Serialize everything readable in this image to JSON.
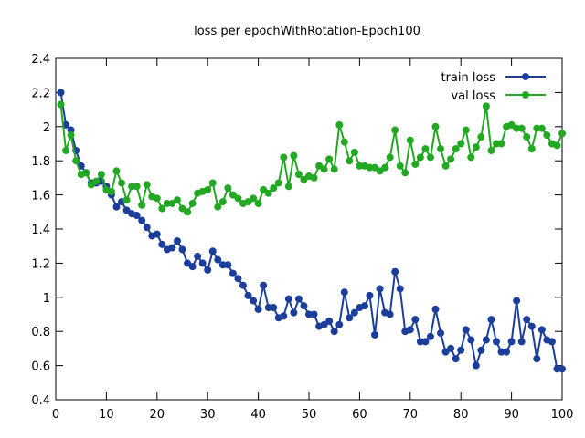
{
  "chart_data": {
    "type": "line",
    "title": "loss per epochWithRotation-Epoch100",
    "xlabel": "",
    "ylabel": "",
    "xlim": [
      0,
      100
    ],
    "ylim": [
      0.4,
      2.4
    ],
    "xticks": [
      0,
      10,
      20,
      30,
      40,
      50,
      60,
      70,
      80,
      90,
      100
    ],
    "yticks": [
      0.4,
      0.6,
      0.8,
      1,
      1.2,
      1.4,
      1.6,
      1.8,
      2,
      2.2,
      2.4
    ],
    "ytick_labels": [
      "0.4",
      "0.6",
      "0.8",
      "1",
      "1.2",
      "1.4",
      "1.6",
      "1.8",
      "2",
      "2.2",
      "2.4"
    ],
    "grid": false,
    "legend_position": "top-right",
    "x": [
      1,
      2,
      3,
      4,
      5,
      6,
      7,
      8,
      9,
      10,
      11,
      12,
      13,
      14,
      15,
      16,
      17,
      18,
      19,
      20,
      21,
      22,
      23,
      24,
      25,
      26,
      27,
      28,
      29,
      30,
      31,
      32,
      33,
      34,
      35,
      36,
      37,
      38,
      39,
      40,
      41,
      42,
      43,
      44,
      45,
      46,
      47,
      48,
      49,
      50,
      51,
      52,
      53,
      54,
      55,
      56,
      57,
      58,
      59,
      60,
      61,
      62,
      63,
      64,
      65,
      66,
      67,
      68,
      69,
      70,
      71,
      72,
      73,
      74,
      75,
      76,
      77,
      78,
      79,
      80,
      81,
      82,
      83,
      84,
      85,
      86,
      87,
      88,
      89,
      90,
      91,
      92,
      93,
      94,
      95,
      96,
      97,
      98,
      99,
      100
    ],
    "series": [
      {
        "name": "train loss",
        "color": "#1a3e9a",
        "values": [
          2.2,
          2.01,
          1.98,
          1.86,
          1.77,
          1.73,
          1.67,
          1.67,
          1.68,
          1.65,
          1.6,
          1.53,
          1.56,
          1.51,
          1.49,
          1.48,
          1.45,
          1.41,
          1.36,
          1.37,
          1.31,
          1.28,
          1.29,
          1.33,
          1.28,
          1.2,
          1.18,
          1.24,
          1.2,
          1.16,
          1.27,
          1.22,
          1.19,
          1.19,
          1.14,
          1.11,
          1.07,
          1.01,
          0.98,
          0.93,
          1.07,
          0.94,
          0.94,
          0.88,
          0.89,
          0.99,
          0.91,
          0.99,
          0.95,
          0.9,
          0.9,
          0.83,
          0.84,
          0.86,
          0.8,
          0.84,
          1.03,
          0.88,
          0.91,
          0.94,
          0.95,
          1.01,
          0.78,
          1.05,
          0.91,
          0.9,
          1.15,
          1.05,
          0.8,
          0.81,
          0.87,
          0.74,
          0.74,
          0.77,
          0.93,
          0.79,
          0.68,
          0.7,
          0.64,
          0.69,
          0.81,
          0.75,
          0.6,
          0.69,
          0.75,
          0.87,
          0.74,
          0.68,
          0.68,
          0.74,
          0.98,
          0.74,
          0.87,
          0.83,
          0.64,
          0.81,
          0.75,
          0.74,
          0.58,
          0.58
        ]
      },
      {
        "name": "val loss",
        "color": "#22a822",
        "values": [
          2.13,
          1.86,
          1.95,
          1.8,
          1.72,
          1.73,
          1.66,
          1.68,
          1.72,
          1.63,
          1.62,
          1.74,
          1.67,
          1.57,
          1.65,
          1.65,
          1.54,
          1.66,
          1.59,
          1.58,
          1.52,
          1.55,
          1.55,
          1.57,
          1.52,
          1.5,
          1.55,
          1.61,
          1.62,
          1.63,
          1.67,
          1.53,
          1.56,
          1.64,
          1.6,
          1.58,
          1.55,
          1.56,
          1.58,
          1.55,
          1.63,
          1.61,
          1.64,
          1.67,
          1.82,
          1.65,
          1.83,
          1.72,
          1.69,
          1.71,
          1.7,
          1.77,
          1.75,
          1.81,
          1.75,
          2.01,
          1.91,
          1.8,
          1.85,
          1.77,
          1.77,
          1.76,
          1.76,
          1.74,
          1.76,
          1.82,
          1.98,
          1.77,
          1.73,
          1.92,
          1.78,
          1.82,
          1.87,
          1.82,
          2.0,
          1.87,
          1.77,
          1.81,
          1.87,
          1.9,
          1.98,
          1.82,
          1.88,
          1.94,
          2.12,
          1.86,
          1.9,
          1.9,
          2.0,
          2.01,
          1.99,
          1.99,
          1.94,
          1.87,
          1.99,
          1.99,
          1.95,
          1.9,
          1.89,
          1.96
        ]
      }
    ]
  }
}
